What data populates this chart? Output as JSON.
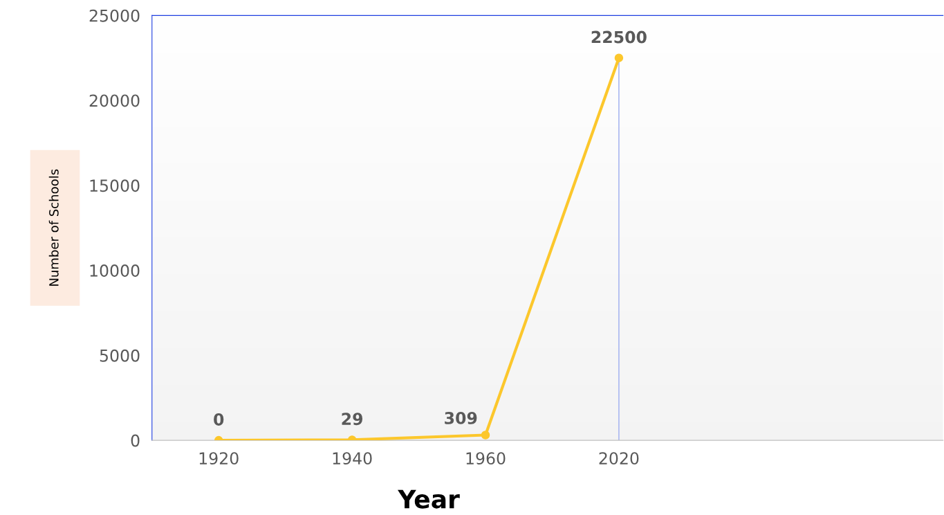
{
  "chart_data": {
    "type": "line",
    "xlabel": "Year",
    "ylabel": "Number of Schools",
    "categories": [
      "1920",
      "1940",
      "1960",
      "2020"
    ],
    "series": [
      {
        "color": "#fcc72c",
        "values": [
          0,
          29,
          309,
          22500
        ]
      }
    ],
    "ylim": [
      0,
      25000
    ],
    "yticks": [
      0,
      5000,
      10000,
      15000,
      20000,
      25000
    ],
    "ref_lines": [
      {
        "axis": "x",
        "value": "2020",
        "color": "#aab8f0"
      }
    ],
    "data_labels": true,
    "marker": "circle",
    "line_style": "solid",
    "grid": false,
    "legend": false
  }
}
